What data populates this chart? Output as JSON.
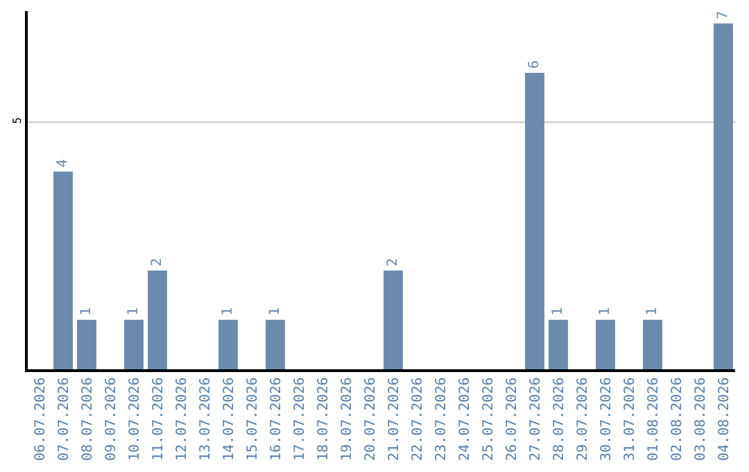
{
  "chart_data": {
    "type": "bar",
    "categories": [
      "06.07.2026",
      "07.07.2026",
      "08.07.2026",
      "09.07.2026",
      "10.07.2026",
      "11.07.2026",
      "12.07.2026",
      "13.07.2026",
      "14.07.2026",
      "15.07.2026",
      "16.07.2026",
      "17.07.2026",
      "18.07.2026",
      "19.07.2026",
      "20.07.2026",
      "21.07.2026",
      "22.07.2026",
      "23.07.2026",
      "24.07.2026",
      "25.07.2026",
      "26.07.2026",
      "27.07.2026",
      "28.07.2026",
      "29.07.2026",
      "30.07.2026",
      "31.07.2026",
      "01.08.2026",
      "02.08.2026",
      "03.08.2026",
      "04.08.2026"
    ],
    "values": [
      0,
      4,
      1,
      0,
      1,
      2,
      0,
      0,
      1,
      0,
      1,
      0,
      0,
      0,
      0,
      2,
      0,
      0,
      0,
      0,
      0,
      6,
      1,
      0,
      1,
      0,
      1,
      0,
      0,
      7
    ],
    "value_labels": [
      null,
      "4",
      "1",
      null,
      "1",
      "2",
      null,
      null,
      "1",
      null,
      "1",
      null,
      null,
      null,
      null,
      "2",
      null,
      null,
      null,
      null,
      null,
      "6",
      "1",
      null,
      "1",
      null,
      "1",
      null,
      null,
      "7"
    ],
    "color": "#6a8bab",
    "ylim": [
      0,
      7.25
    ],
    "yticks": [
      5
    ],
    "grid": "y",
    "legend": false
  }
}
